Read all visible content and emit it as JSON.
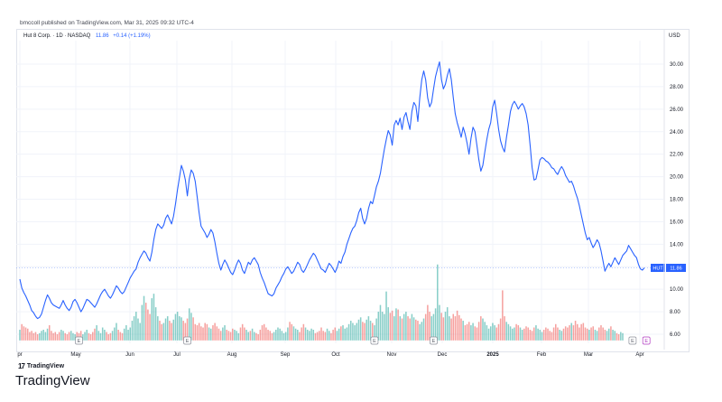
{
  "header": {
    "publisher_line": "bmccoll published on TradingView.com, Mar 31, 2025 09:32 UTC-4"
  },
  "legend": {
    "symbol": "Hut 8 Corp. · 1D · NASDAQ",
    "price": "11.86",
    "change": "+0.14 (+1.19%)"
  },
  "axis": {
    "currency": "USD",
    "price_tag": "11.86",
    "symbol_tag": "HUT"
  },
  "footer": {
    "mini_brand": "TradingView",
    "big_brand": "TradingView"
  },
  "colors": {
    "line": "#2962ff",
    "volume_up": "#26a69a",
    "volume_down": "#ef5350",
    "grid": "#f0f3fa"
  },
  "chart_data": {
    "type": "line",
    "title": "Hut 8 Corp. · 1D · NASDAQ",
    "xlabel": "",
    "ylabel": "USD",
    "ylim": [
      5,
      31
    ],
    "y_ticks": [
      "30.00",
      "28.00",
      "26.00",
      "24.00",
      "22.00",
      "20.00",
      "18.00",
      "16.00",
      "14.00",
      "12.00",
      "10.00",
      "8.00",
      "6.00"
    ],
    "x_tick_labels": [
      "pr",
      "May",
      "Jun",
      "Jul",
      "Aug",
      "Sep",
      "Oct",
      "Nov",
      "Dec",
      "2025",
      "Feb",
      "Mar",
      "Apr"
    ],
    "grid": true,
    "series": [
      {
        "values": [
          10.9,
          10.1,
          9.7,
          9.4,
          9.0,
          8.6,
          8.1,
          7.9,
          7.6,
          7.4,
          7.5,
          7.8,
          8.4,
          9.0,
          9.5,
          9.2,
          8.8,
          8.6,
          8.5,
          8.4,
          8.3,
          8.6,
          9.0,
          8.6,
          8.3,
          8.1,
          8.4,
          8.9,
          9.1,
          8.8,
          8.4,
          8.0,
          8.3,
          8.7,
          9.1,
          9.0,
          8.8,
          8.6,
          8.4,
          8.7,
          9.1,
          9.5,
          9.8,
          10.0,
          9.7,
          9.4,
          9.2,
          9.5,
          9.9,
          10.3,
          10.1,
          9.8,
          9.6,
          9.8,
          10.2,
          10.6,
          11.0,
          11.3,
          11.6,
          11.8,
          12.4,
          12.8,
          13.1,
          13.4,
          13.2,
          12.8,
          12.5,
          13.3,
          14.4,
          15.3,
          15.8,
          15.6,
          15.4,
          15.7,
          16.3,
          16.6,
          16.2,
          15.8,
          16.5,
          17.6,
          18.8,
          19.9,
          21.0,
          20.5,
          19.7,
          18.3,
          19.8,
          20.6,
          20.3,
          19.6,
          18.2,
          16.8,
          15.6,
          15.3,
          15.0,
          14.6,
          14.9,
          15.3,
          15.0,
          14.2,
          13.2,
          12.3,
          11.7,
          12.2,
          12.6,
          12.3,
          11.9,
          11.5,
          11.3,
          11.7,
          12.2,
          12.6,
          12.3,
          11.7,
          11.4,
          11.9,
          12.4,
          12.2,
          12.6,
          12.8,
          12.5,
          12.2,
          11.5,
          11.0,
          10.6,
          10.1,
          9.6,
          9.5,
          9.4,
          9.6,
          10.1,
          10.4,
          10.7,
          11.1,
          11.4,
          11.8,
          12.0,
          11.7,
          11.4,
          11.6,
          12.0,
          12.4,
          12.2,
          11.7,
          11.5,
          11.8,
          12.2,
          12.6,
          12.9,
          13.2,
          13.0,
          12.6,
          12.2,
          11.8,
          11.7,
          11.5,
          11.9,
          12.3,
          12.1,
          11.8,
          11.5,
          11.9,
          12.5,
          12.3,
          12.9,
          13.3,
          14.0,
          14.5,
          15.0,
          15.4,
          15.6,
          16.1,
          16.8,
          17.2,
          16.3,
          15.8,
          16.3,
          17.2,
          17.8,
          17.6,
          18.3,
          19.1,
          19.6,
          20.3,
          21.4,
          22.4,
          23.3,
          24.1,
          23.7,
          22.8,
          24.6,
          25.0,
          24.6,
          25.2,
          24.2,
          25.3,
          25.7,
          24.9,
          24.2,
          25.8,
          26.6,
          26.3,
          24.9,
          27.0,
          28.6,
          29.4,
          28.6,
          27.0,
          26.2,
          26.6,
          27.8,
          28.9,
          29.6,
          30.2,
          28.6,
          27.8,
          28.2,
          29.0,
          29.6,
          28.6,
          27.0,
          25.6,
          24.8,
          24.2,
          23.5,
          24.4,
          23.8,
          23.0,
          22.0,
          23.4,
          24.4,
          24.0,
          22.8,
          21.5,
          20.5,
          21.0,
          22.2,
          23.3,
          24.2,
          24.8,
          26.2,
          26.8,
          25.6,
          24.2,
          23.2,
          22.6,
          22.2,
          23.5,
          24.6,
          25.8,
          26.4,
          26.7,
          26.4,
          26.0,
          26.3,
          26.5,
          26.2,
          25.6,
          24.6,
          22.8,
          20.8,
          19.7,
          19.8,
          20.6,
          21.5,
          21.7,
          21.6,
          21.4,
          21.3,
          21.1,
          20.8,
          20.7,
          20.4,
          20.2,
          20.6,
          20.9,
          20.6,
          20.1,
          19.8,
          19.5,
          19.6,
          19.2,
          18.6,
          18.1,
          17.4,
          16.6,
          15.8,
          15.0,
          14.4,
          14.6,
          14.1,
          13.7,
          14.0,
          14.4,
          14.1,
          13.4,
          12.5,
          11.6,
          12.0,
          12.3,
          12.0,
          12.4,
          12.8,
          12.5,
          12.2,
          12.6,
          13.0,
          13.2,
          13.4,
          13.9,
          13.6,
          13.3,
          13.0,
          12.8,
          12.2,
          11.8,
          11.7,
          11.9
        ]
      }
    ],
    "volume": {
      "values": [
        6.4,
        6.9,
        6.7,
        6.6,
        6.5,
        6.2,
        6.3,
        6.1,
        6.2,
        6.0,
        6.1,
        6.3,
        6.4,
        6.2,
        6.5,
        6.8,
        6.3,
        6.1,
        6.2,
        6.0,
        6.2,
        6.4,
        6.3,
        6.1,
        6.0,
        6.2,
        6.3,
        6.1,
        6.0,
        6.2,
        6.1,
        6.3,
        6.0,
        6.2,
        6.4,
        6.1,
        6.0,
        6.2,
        6.5,
        6.8,
        6.3,
        6.1,
        6.6,
        6.4,
        6.2,
        6.0,
        6.1,
        6.3,
        6.6,
        7.0,
        6.4,
        6.2,
        6.1,
        6.5,
        6.8,
        6.4,
        6.6,
        7.2,
        7.6,
        8.0,
        7.4,
        7.0,
        8.6,
        9.4,
        8.8,
        8.2,
        7.8,
        9.2,
        9.6,
        8.4,
        7.6,
        7.2,
        6.9,
        7.0,
        7.4,
        7.6,
        7.2,
        7.0,
        7.3,
        7.8,
        8.0,
        7.6,
        7.5,
        7.2,
        7.0,
        7.4,
        8.3,
        7.9,
        7.5,
        6.9,
        6.8,
        7.0,
        6.7,
        6.6,
        7.0,
        6.9,
        6.6,
        6.5,
        6.8,
        7.0,
        6.7,
        6.5,
        6.3,
        6.6,
        6.8,
        6.4,
        6.3,
        6.2,
        6.5,
        6.4,
        6.3,
        6.1,
        6.6,
        6.9,
        6.6,
        6.4,
        6.2,
        6.3,
        6.5,
        6.2,
        6.1,
        6.0,
        6.4,
        6.8,
        6.9,
        6.6,
        6.4,
        6.3,
        6.1,
        6.2,
        6.4,
        6.6,
        6.5,
        6.3,
        6.1,
        6.2,
        6.6,
        7.1,
        6.9,
        6.7,
        6.5,
        6.4,
        6.2,
        6.6,
        6.9,
        6.6,
        6.4,
        6.3,
        6.5,
        6.4,
        6.1,
        6.2,
        6.3,
        6.6,
        6.3,
        6.2,
        6.5,
        6.3,
        6.1,
        6.4,
        6.6,
        6.3,
        6.5,
        6.7,
        6.8,
        6.5,
        6.6,
        6.9,
        7.2,
        7.0,
        6.8,
        7.0,
        7.3,
        7.5,
        7.1,
        7.0,
        7.3,
        7.6,
        7.2,
        7.0,
        6.8,
        7.4,
        8.0,
        8.6,
        8.0,
        7.8,
        9.8,
        8.4,
        7.9,
        8.1,
        7.6,
        8.3,
        8.2,
        7.6,
        7.4,
        7.8,
        8.0,
        7.6,
        7.4,
        7.8,
        7.5,
        7.3,
        7.2,
        6.9,
        7.1,
        7.4,
        7.8,
        8.6,
        8.0,
        7.6,
        7.8,
        8.3,
        12.2,
        8.6,
        7.9,
        7.5,
        8.0,
        8.4,
        7.6,
        7.4,
        7.8,
        7.6,
        8.1,
        7.7,
        7.4,
        7.2,
        6.8,
        6.9,
        7.1,
        6.8,
        7.0,
        6.7,
        6.6,
        7.1,
        7.6,
        7.4,
        7.1,
        6.8,
        6.5,
        6.7,
        7.0,
        6.8,
        6.6,
        6.9,
        7.4,
        9.9,
        7.6,
        7.1,
        6.9,
        6.7,
        6.5,
        6.6,
        6.9,
        6.8,
        6.6,
        6.4,
        6.5,
        6.7,
        6.6,
        6.4,
        6.3,
        6.6,
        6.8,
        6.5,
        6.4,
        6.2,
        6.4,
        6.6,
        6.5,
        6.3,
        6.2,
        6.6,
        6.9,
        6.6,
        6.4,
        6.3,
        6.5,
        6.7,
        6.6,
        6.8,
        7.0,
        6.8,
        7.2,
        6.9,
        6.6,
        6.9,
        7.0,
        6.6,
        6.5,
        6.4,
        6.6,
        6.7,
        6.4,
        6.3,
        6.6,
        6.8,
        6.6,
        6.4,
        6.3,
        6.5,
        6.7,
        6.4,
        6.3,
        6.1,
        6.0,
        6.2,
        6.1
      ]
    },
    "events": [
      {
        "label": "E",
        "index": 30
      },
      {
        "label": "E",
        "index": 85
      },
      {
        "label": "E",
        "index": 180
      },
      {
        "label": "E",
        "index": 210
      },
      {
        "label": "E",
        "index": 311
      },
      {
        "label": "E",
        "index": 318
      }
    ]
  }
}
